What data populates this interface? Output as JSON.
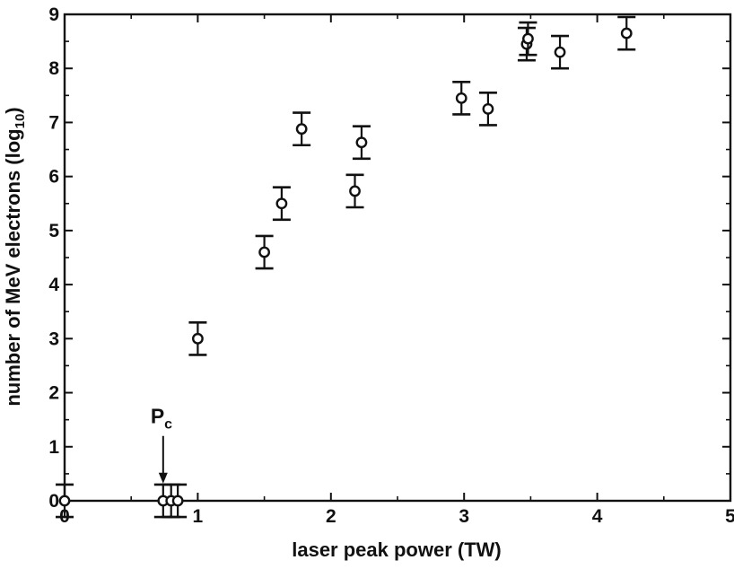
{
  "chart_data": {
    "type": "scatter",
    "title": "",
    "xlabel": "laser peak power (TW)",
    "ylabel_main": "number of MeV electrons (log",
    "ylabel_sub": "10",
    "ylabel_end": ")",
    "xlim": [
      0,
      5
    ],
    "ylim": [
      0,
      9
    ],
    "xticks": [
      "0",
      "1",
      "2",
      "3",
      "4",
      "5"
    ],
    "yticks": [
      "0",
      "1",
      "2",
      "3",
      "4",
      "5",
      "6",
      "7",
      "8",
      "9"
    ],
    "grid": false,
    "series": [
      {
        "marker": "open-circle",
        "errorbars": true,
        "points": [
          {
            "x": 0.0,
            "y": 0.0,
            "err": 0.3
          },
          {
            "x": 0.74,
            "y": 0.0,
            "err": 0.3
          },
          {
            "x": 0.8,
            "y": 0.0,
            "err": 0.3
          },
          {
            "x": 0.85,
            "y": 0.0,
            "err": 0.3
          },
          {
            "x": 1.0,
            "y": 3.0,
            "err": 0.3
          },
          {
            "x": 1.5,
            "y": 4.6,
            "err": 0.3
          },
          {
            "x": 1.63,
            "y": 5.5,
            "err": 0.3
          },
          {
            "x": 1.78,
            "y": 6.88,
            "err": 0.3
          },
          {
            "x": 2.18,
            "y": 5.73,
            "err": 0.3
          },
          {
            "x": 2.23,
            "y": 6.63,
            "err": 0.3
          },
          {
            "x": 2.98,
            "y": 7.45,
            "err": 0.3
          },
          {
            "x": 3.18,
            "y": 7.25,
            "err": 0.3
          },
          {
            "x": 3.47,
            "y": 8.45,
            "err": 0.3
          },
          {
            "x": 3.48,
            "y": 8.55,
            "err": 0.3
          },
          {
            "x": 3.72,
            "y": 8.3,
            "err": 0.3
          },
          {
            "x": 4.22,
            "y": 8.65,
            "err": 0.3
          }
        ]
      }
    ],
    "annotation": {
      "main": "P",
      "sub": "c",
      "x": 0.74,
      "arrow_from_y": 1.2,
      "arrow_to_y": 0.32
    }
  }
}
